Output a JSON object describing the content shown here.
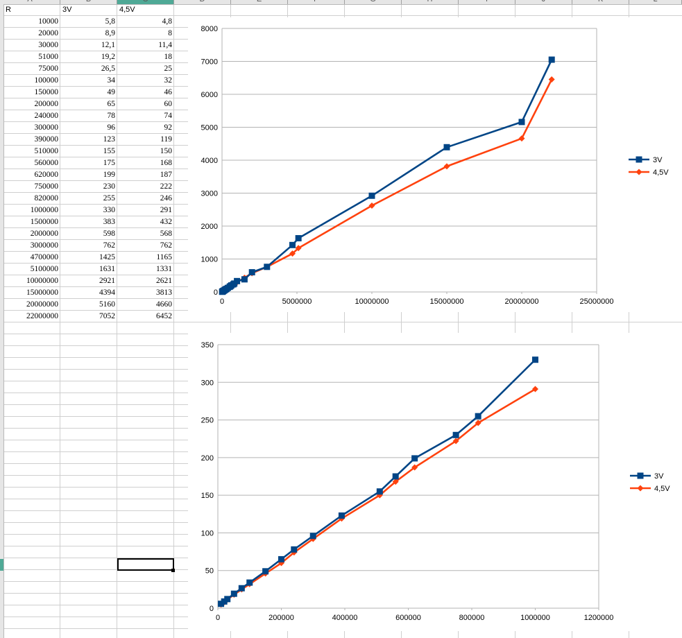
{
  "sheet": {
    "columns": [
      "A",
      "B",
      "C",
      "D",
      "E",
      "F",
      "G",
      "H",
      "I",
      "J",
      "K",
      "L"
    ],
    "header_row": [
      "R",
      "3V",
      "4,5V"
    ],
    "rows": [
      [
        "10000",
        "5,8",
        "4,8"
      ],
      [
        "20000",
        "8,9",
        "8"
      ],
      [
        "30000",
        "12,1",
        "11,4"
      ],
      [
        "51000",
        "19,2",
        "18"
      ],
      [
        "75000",
        "26,5",
        "25"
      ],
      [
        "100000",
        "34",
        "32"
      ],
      [
        "150000",
        "49",
        "46"
      ],
      [
        "200000",
        "65",
        "60"
      ],
      [
        "240000",
        "78",
        "74"
      ],
      [
        "300000",
        "96",
        "92"
      ],
      [
        "390000",
        "123",
        "119"
      ],
      [
        "510000",
        "155",
        "150"
      ],
      [
        "560000",
        "175",
        "168"
      ],
      [
        "620000",
        "199",
        "187"
      ],
      [
        "750000",
        "230",
        "222"
      ],
      [
        "820000",
        "255",
        "246"
      ],
      [
        "1000000",
        "330",
        "291"
      ],
      [
        "1500000",
        "383",
        "432"
      ],
      [
        "2000000",
        "598",
        "568"
      ],
      [
        "3000000",
        "762",
        "762"
      ],
      [
        "4700000",
        "1425",
        "1165"
      ],
      [
        "5100000",
        "1631",
        "1331"
      ],
      [
        "10000000",
        "2921",
        "2621"
      ],
      [
        "15000000",
        "4394",
        "3813"
      ],
      [
        "20000000",
        "5160",
        "4660"
      ],
      [
        "22000000",
        "7052",
        "6452"
      ]
    ],
    "selected_column": "C"
  },
  "colors": {
    "series_3v": "#004586",
    "series_45v": "#ff420e",
    "gridline": "#b3b3b3",
    "header_bg": "#e6e6e6",
    "selection": "#4fa996"
  },
  "chart_data": [
    {
      "type": "line",
      "xlabel": "",
      "ylabel": "",
      "xlim": [
        0,
        25000000
      ],
      "ylim": [
        0,
        8000
      ],
      "x_ticks": [
        "0",
        "5000000",
        "10000000",
        "15000000",
        "20000000",
        "25000000"
      ],
      "y_ticks": [
        "0",
        "1000",
        "2000",
        "3000",
        "4000",
        "5000",
        "6000",
        "7000",
        "8000"
      ],
      "legend_position": "right",
      "grid": true,
      "x": [
        10000,
        20000,
        30000,
        51000,
        75000,
        100000,
        150000,
        200000,
        240000,
        300000,
        390000,
        510000,
        560000,
        620000,
        750000,
        820000,
        1000000,
        1500000,
        2000000,
        3000000,
        4700000,
        5100000,
        10000000,
        15000000,
        20000000,
        22000000
      ],
      "series": [
        {
          "name": "3V",
          "marker": "square",
          "values": [
            5.8,
            8.9,
            12.1,
            19.2,
            26.5,
            34,
            49,
            65,
            78,
            96,
            123,
            155,
            175,
            199,
            230,
            255,
            330,
            383,
            598,
            762,
            1425,
            1631,
            2921,
            4394,
            5160,
            7052
          ]
        },
        {
          "name": "4,5V",
          "marker": "diamond",
          "values": [
            4.8,
            8,
            11.4,
            18,
            25,
            32,
            46,
            60,
            74,
            92,
            119,
            150,
            168,
            187,
            222,
            246,
            291,
            432,
            568,
            762,
            1165,
            1331,
            2621,
            3813,
            4660,
            6452
          ]
        }
      ]
    },
    {
      "type": "line",
      "xlabel": "",
      "ylabel": "",
      "xlim": [
        0,
        1200000
      ],
      "ylim": [
        0,
        350
      ],
      "x_ticks": [
        "0",
        "200000",
        "400000",
        "600000",
        "800000",
        "1000000",
        "1200000"
      ],
      "y_ticks": [
        "0",
        "50",
        "100",
        "150",
        "200",
        "250",
        "300",
        "350"
      ],
      "legend_position": "right",
      "grid": true,
      "x": [
        10000,
        20000,
        30000,
        51000,
        75000,
        100000,
        150000,
        200000,
        240000,
        300000,
        390000,
        510000,
        560000,
        620000,
        750000,
        820000,
        1000000
      ],
      "series": [
        {
          "name": "3V",
          "marker": "square",
          "values": [
            5.8,
            8.9,
            12.1,
            19.2,
            26.5,
            34,
            49,
            65,
            78,
            96,
            123,
            155,
            175,
            199,
            230,
            255,
            330
          ]
        },
        {
          "name": "4,5V",
          "marker": "diamond",
          "values": [
            4.8,
            8,
            11.4,
            18,
            25,
            32,
            46,
            60,
            74,
            92,
            119,
            150,
            168,
            187,
            222,
            246,
            291
          ]
        }
      ]
    }
  ]
}
